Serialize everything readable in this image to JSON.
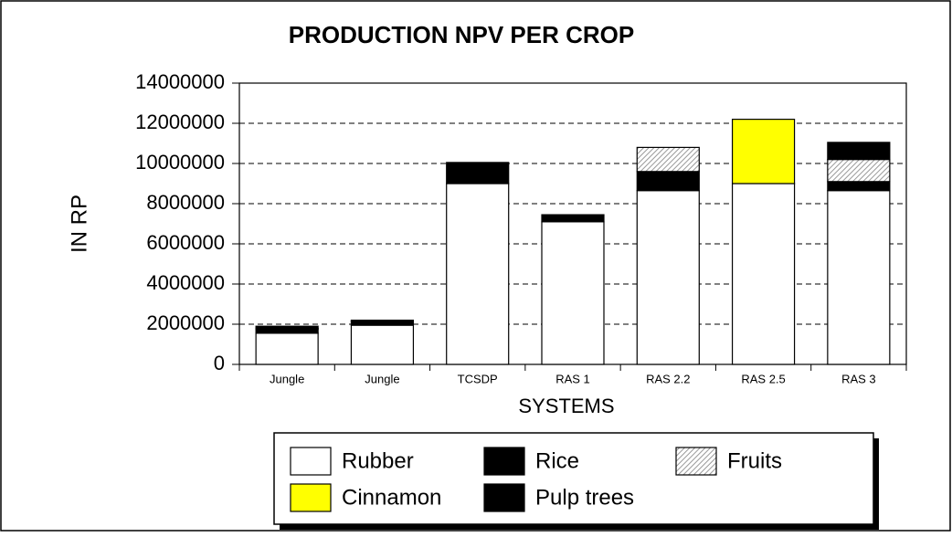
{
  "chart_data": {
    "type": "stacked_bar",
    "title": "PRODUCTION NPV PER CROP",
    "x_label": "SYSTEMS",
    "y_label": "IN RP",
    "categories": [
      "Jungle",
      "Jungle",
      "TCSDP",
      "RAS 1",
      "RAS 2.2",
      "RAS 2.5",
      "RAS 3"
    ],
    "series": [
      {
        "name": "Rubber",
        "color": "#ffffff",
        "values": [
          1550000,
          1950000,
          9000000,
          7100000,
          8650000,
          9000000,
          8650000
        ]
      },
      {
        "name": "Rice",
        "color": "#000000",
        "values": [
          200000,
          200000,
          1050000,
          350000,
          950000,
          0,
          450000
        ]
      },
      {
        "name": "Fruits",
        "color": "#d9d9d9",
        "values": [
          50000,
          50000,
          0,
          0,
          1200000,
          0,
          1100000
        ]
      },
      {
        "name": "Cinnamon",
        "color": "#ffff00",
        "values": [
          0,
          0,
          0,
          0,
          0,
          3200000,
          0
        ]
      },
      {
        "name": "Pulp trees",
        "color": "#f8d4b0",
        "values": [
          100000,
          0,
          0,
          0,
          0,
          0,
          850000
        ]
      }
    ],
    "ylim": [
      0,
      14000000
    ],
    "yticks": [
      0,
      2000000,
      4000000,
      6000000,
      8000000,
      10000000,
      12000000,
      14000000
    ],
    "grid": true,
    "legend": "bottom"
  }
}
